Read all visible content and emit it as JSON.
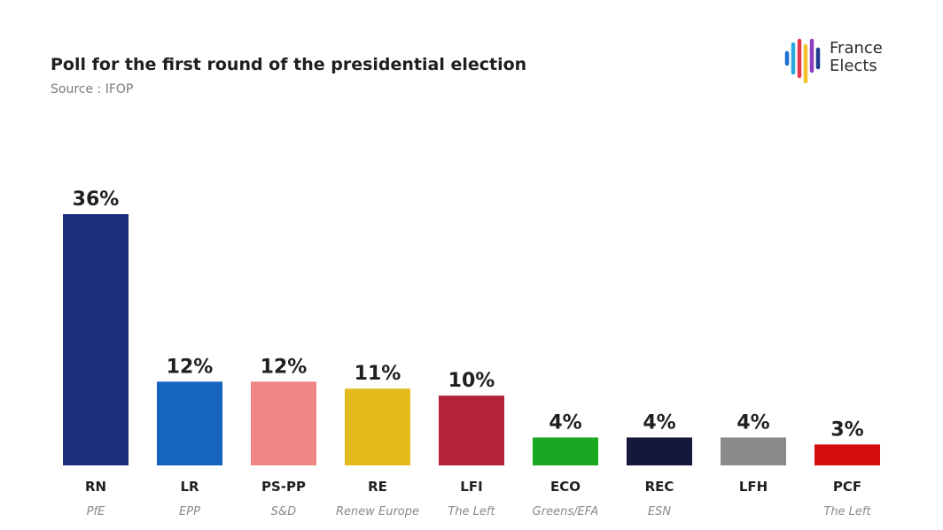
{
  "header": {
    "title": "Poll for the first round of the presidential election",
    "source": "Source : IFOP"
  },
  "logo": {
    "line1": "France",
    "line2": "Elects",
    "stripe_colors": [
      "#1f6fd1",
      "#2aa8e0",
      "#e63a4a",
      "#f2c12e",
      "#8e3fbf",
      "#1d3c8f"
    ]
  },
  "chart_data": {
    "type": "bar",
    "title": "Poll for the first round of the presidential election",
    "categories": [
      "RN",
      "LR",
      "PS-PP",
      "RE",
      "LFI",
      "ECO",
      "REC",
      "LFH",
      "PCF"
    ],
    "groups": [
      "PfE",
      "EPP",
      "S&D",
      "Renew Europe",
      "The Left",
      "Greens/EFA",
      "ESN",
      "",
      "The Left"
    ],
    "values": [
      36,
      12,
      12,
      11,
      10,
      4,
      4,
      4,
      3
    ],
    "value_labels": [
      "36%",
      "12%",
      "12%",
      "11%",
      "10%",
      "4%",
      "4%",
      "4%",
      "3%"
    ],
    "colors": [
      "#1b2f7e",
      "#1565c0",
      "#f08585",
      "#e3bb1c",
      "#b52136",
      "#18a821",
      "#15183a",
      "#8a8a8a",
      "#d40d0d"
    ],
    "ylim": [
      0,
      36
    ],
    "grid": false,
    "legend": "none"
  }
}
